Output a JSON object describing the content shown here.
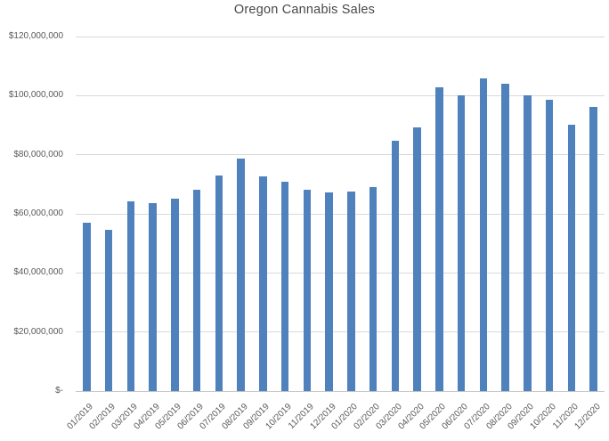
{
  "colors": {
    "bar": "#4f81bd",
    "gridline": "#d9d9d9",
    "axis_line": "#c6c6c6",
    "title_text": "#494949",
    "tick_text": "#595959",
    "background": "#ffffff"
  },
  "chart_data": {
    "type": "bar",
    "title": "Oregon Cannabis Sales",
    "xlabel": "",
    "ylabel": "",
    "grid": true,
    "legend": false,
    "ylim": [
      0,
      120000000
    ],
    "ytick_interval": 20000000,
    "yticks": [
      {
        "value": 0,
        "label": "$-"
      },
      {
        "value": 20000000,
        "label": "$20,000,000"
      },
      {
        "value": 40000000,
        "label": "$40,000,000"
      },
      {
        "value": 60000000,
        "label": "$60,000,000"
      },
      {
        "value": 80000000,
        "label": "$80,000,000"
      },
      {
        "value": 100000000,
        "label": "$100,000,000"
      },
      {
        "value": 120000000,
        "label": "$120,000,000"
      }
    ],
    "categories": [
      "01/2019",
      "02/2019",
      "03/2019",
      "04/2019",
      "05/2019",
      "06/2019",
      "07/2019",
      "08/2019",
      "09/2019",
      "10/2019",
      "11/2019",
      "12/2019",
      "01/2020",
      "02/2020",
      "03/2020",
      "04/2020",
      "05/2020",
      "06/2020",
      "07/2020",
      "08/2020",
      "09/2020",
      "10/2020",
      "11/2020",
      "12/2020"
    ],
    "values": [
      57000000,
      54700000,
      64300000,
      63600000,
      65100000,
      68200000,
      73100000,
      78600000,
      72600000,
      70800000,
      68200000,
      67300000,
      67500000,
      69000000,
      84600000,
      89200000,
      102900000,
      100200000,
      105900000,
      103900000,
      100000000,
      98500000,
      90100000,
      96200000
    ]
  }
}
